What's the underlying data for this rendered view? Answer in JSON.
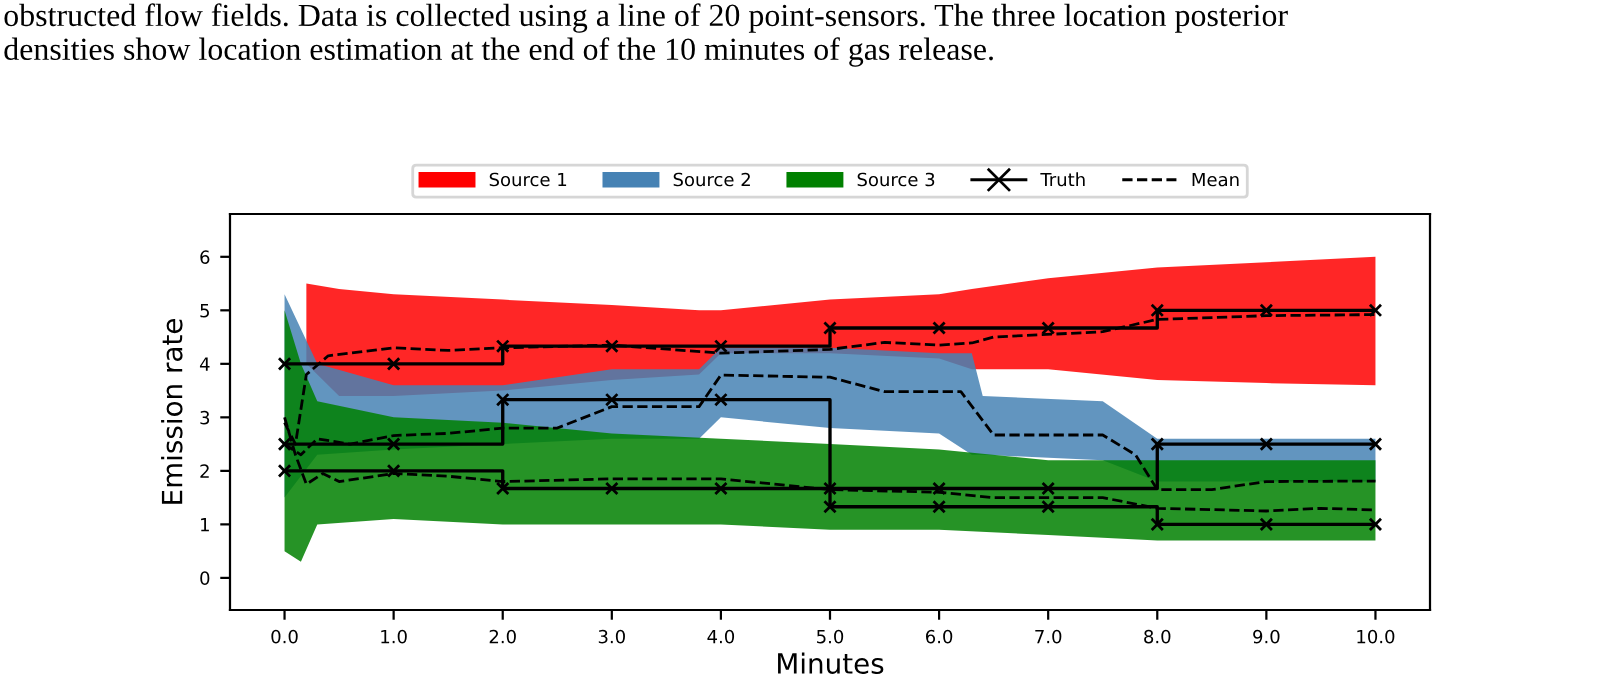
{
  "chart_data": {
    "type": "line",
    "xlabel": "Minutes",
    "ylabel": "Emission rate",
    "annotations": [
      "obstructed flow fields. Data is collected using a line of 20 point-sensors. The three location posterior\ndensities show location estimation at the end of the 10 minutes of gas release."
    ],
    "xlim": [
      -0.5,
      10.5
    ],
    "ylim": [
      -0.6,
      6.8
    ],
    "xticks": [
      {
        "value": 0,
        "label": "0.0"
      },
      {
        "value": 1,
        "label": "1.0"
      },
      {
        "value": 2,
        "label": "2.0"
      },
      {
        "value": 3,
        "label": "3.0"
      },
      {
        "value": 4,
        "label": "4.0"
      },
      {
        "value": 5,
        "label": "5.0"
      },
      {
        "value": 6,
        "label": "6.0"
      },
      {
        "value": 7,
        "label": "7.0"
      },
      {
        "value": 8,
        "label": "8.0"
      },
      {
        "value": 9,
        "label": "9.0"
      },
      {
        "value": 10,
        "label": "10.0"
      }
    ],
    "yticks": [
      0,
      1,
      2,
      3,
      4,
      5,
      6
    ],
    "legend": "top",
    "grid": false,
    "series": [
      {
        "name": "Source 1",
        "type": "area",
        "color": "#ff0000",
        "x": [
          0.2,
          0.5,
          1,
          2,
          3,
          3.8,
          4,
          5,
          6,
          6.3,
          7,
          8,
          9,
          10
        ],
        "values": [
          null,
          null,
          null,
          null,
          null,
          null,
          null,
          null,
          null,
          null,
          null,
          null,
          null,
          null
        ],
        "upper": [
          5.5,
          5.4,
          5.3,
          5.2,
          5.1,
          5.0,
          5.0,
          5.2,
          5.3,
          5.4,
          5.6,
          5.8,
          5.9,
          6.0
        ],
        "lower": [
          4.0,
          3.4,
          3.4,
          3.5,
          3.7,
          3.8,
          4.2,
          4.2,
          4.1,
          3.9,
          3.9,
          3.7,
          3.64,
          3.6
        ]
      },
      {
        "name": "Source 2",
        "type": "area",
        "color": "#4682b4",
        "x": [
          0,
          0.3,
          1,
          2,
          3,
          3.8,
          4,
          5,
          6,
          6.3,
          6.4,
          7.5,
          8,
          10
        ],
        "values": [
          null,
          null,
          null,
          null,
          null,
          null,
          null,
          null,
          null,
          null,
          null,
          null,
          null,
          null
        ],
        "upper": [
          5.3,
          4.0,
          3.6,
          3.6,
          3.9,
          3.9,
          4.3,
          4.3,
          4.2,
          4.2,
          3.4,
          3.3,
          2.6,
          2.6
        ],
        "lower": [
          1.5,
          2.3,
          2.4,
          2.5,
          2.6,
          2.6,
          3.0,
          2.8,
          2.7,
          2.3,
          2.3,
          2.2,
          1.8,
          1.8
        ]
      },
      {
        "name": "Source 3",
        "type": "area",
        "color": "#008000",
        "x": [
          0,
          0.15,
          0.3,
          1,
          2,
          3,
          4,
          5,
          6,
          7,
          8,
          10
        ],
        "values": [
          null,
          null,
          null,
          null,
          null,
          null,
          null,
          null,
          null,
          null,
          null,
          null
        ],
        "upper": [
          5.0,
          4.0,
          3.3,
          3.0,
          2.9,
          2.7,
          2.6,
          2.5,
          2.4,
          2.2,
          2.2,
          2.2
        ],
        "lower": [
          0.5,
          0.3,
          1.0,
          1.1,
          1.0,
          1.0,
          1.0,
          0.9,
          0.9,
          0.8,
          0.7,
          0.7
        ]
      },
      {
        "name": "Truth",
        "type": "step",
        "color": "#000000",
        "marker": "cross",
        "x": [
          0,
          1,
          2,
          3,
          4,
          5,
          6,
          7,
          8,
          9,
          10
        ],
        "values": [
          4.0,
          4.0,
          4.33,
          4.33,
          4.33,
          4.67,
          4.67,
          4.67,
          5.0,
          5.0,
          5.0
        ]
      },
      {
        "type": "step",
        "color": "#000000",
        "marker": "cross",
        "x": [
          0,
          1,
          2,
          3,
          4,
          5,
          6,
          7,
          8,
          9,
          10
        ],
        "values": [
          2.5,
          2.5,
          3.33,
          3.33,
          3.33,
          1.33,
          1.33,
          1.33,
          1.0,
          1.0,
          1.0
        ]
      },
      {
        "type": "step",
        "color": "#000000",
        "marker": "cross",
        "x": [
          0,
          1,
          2,
          3,
          4,
          5,
          6,
          7,
          8,
          9,
          10
        ],
        "values": [
          2.0,
          2.0,
          1.67,
          1.67,
          1.67,
          1.67,
          1.67,
          1.67,
          2.5,
          2.5,
          2.5
        ]
      },
      {
        "name": "Mean",
        "color": "#000000",
        "line_style": "dashed",
        "x": [
          0,
          0.1,
          0.2,
          0.4,
          1,
          1.5,
          2,
          3,
          4,
          5,
          5.5,
          6,
          6.3,
          6.5,
          7.5,
          8,
          9,
          10
        ],
        "values": [
          2.9,
          2.5,
          3.8,
          4.15,
          4.3,
          4.25,
          4.3,
          4.35,
          4.2,
          4.27,
          4.4,
          4.35,
          4.39,
          4.5,
          4.6,
          4.83,
          4.9,
          4.92
        ]
      },
      {
        "color": "#000000",
        "line_style": "dashed",
        "x": [
          0,
          0.15,
          0.3,
          0.6,
          1,
          1.5,
          2,
          2.5,
          3,
          3.8,
          4,
          5,
          5.5,
          6.2,
          6.5,
          7.5,
          7.8,
          8,
          8.5,
          9,
          10
        ],
        "values": [
          2.5,
          2.3,
          2.6,
          2.5,
          2.66,
          2.7,
          2.8,
          2.8,
          3.2,
          3.2,
          3.79,
          3.75,
          3.48,
          3.48,
          2.67,
          2.67,
          2.3,
          1.65,
          1.65,
          1.8,
          1.81
        ]
      },
      {
        "color": "#000000",
        "line_style": "dashed",
        "x": [
          0,
          0.1,
          0.2,
          0.35,
          0.5,
          1,
          1.5,
          2,
          3,
          4,
          5,
          6,
          6.5,
          7.5,
          8,
          9,
          9.5,
          10
        ],
        "values": [
          3.0,
          2.3,
          1.75,
          1.95,
          1.8,
          1.95,
          1.9,
          1.8,
          1.85,
          1.85,
          1.65,
          1.6,
          1.5,
          1.5,
          1.3,
          1.25,
          1.3,
          1.27
        ]
      }
    ]
  }
}
